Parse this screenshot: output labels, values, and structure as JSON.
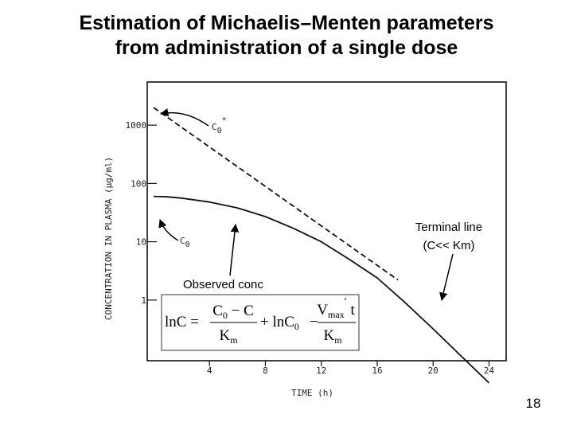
{
  "slide": {
    "title_line1": "Estimation of Michaelis–Menten parameters",
    "title_line2": "from administration of a single dose",
    "page_number": "18"
  },
  "annotations": {
    "terminal_line_1": "Terminal line",
    "terminal_line_2": "(C<< Km)",
    "observed": "Observed conc",
    "c0_star_main": "C",
    "c0_star_sub": "0",
    "c0_star_sup": "*",
    "c0_main": "C",
    "c0_sub": "0"
  },
  "equation": {
    "lhs": "lnC =",
    "frac1_num": "C",
    "frac1_num_sub": "0",
    "frac1_num_rest": " − C",
    "frac1_den": "K",
    "frac1_den_sub": "m",
    "middle": "+ lnC",
    "middle_sub": "0",
    "minus": "−",
    "frac2_num": "V",
    "frac2_num_sub": "max",
    "frac2_num_prime": "′",
    "frac2_num_rest": " t",
    "frac2_den": "K",
    "frac2_den_sub": "m"
  },
  "chart_data": {
    "type": "line",
    "xlabel": "TIME (h)",
    "ylabel": "CONCENTRATION IN PLASMA (µg/ml)",
    "x_ticks": [
      4,
      8,
      12,
      16,
      20,
      24
    ],
    "y_ticks": [
      1,
      10,
      100,
      1000
    ],
    "y_scale": "log",
    "xlim": [
      0,
      25
    ],
    "ylim": [
      0.1,
      5000
    ],
    "series": [
      {
        "style": "solid",
        "x": [
          0,
          1,
          2,
          4,
          6,
          8,
          10,
          12,
          14,
          16,
          18,
          20,
          22,
          24
        ],
        "y": [
          60,
          59,
          56,
          48,
          38,
          27,
          17,
          10,
          5,
          2.4,
          0.9,
          0.32,
          0.11,
          0.038
        ]
      },
      {
        "style": "dashed",
        "x": [
          0,
          17.5
        ],
        "y": [
          2000,
          2.2
        ]
      }
    ]
  }
}
